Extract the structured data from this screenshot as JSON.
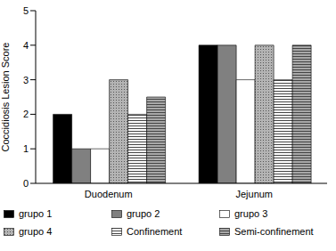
{
  "chart_data": {
    "type": "bar",
    "y_label": "Coccidiosis Lesion Score",
    "categories": [
      "Duodenum",
      "Jejunum"
    ],
    "series": [
      {
        "name": "grupo 1",
        "color": "#000000",
        "values": [
          2,
          4
        ]
      },
      {
        "name": "grupo 2",
        "color": "#808080",
        "values": [
          1,
          4
        ]
      },
      {
        "name": "grupo 3",
        "color": "#ffffff",
        "values": [
          1,
          3
        ]
      },
      {
        "name": "grupo 4",
        "color": "#b4b4b4",
        "values": [
          3,
          4
        ]
      },
      {
        "name": "Confinement",
        "color": "#ffffff",
        "values": [
          2,
          3
        ]
      },
      {
        "name": "Semi-confinement",
        "color": "#a8a8a8",
        "values": [
          2.5,
          4
        ]
      }
    ],
    "ylim": [
      0,
      5
    ],
    "yticks": [
      0,
      1,
      2,
      3,
      4,
      5
    ],
    "grid": false,
    "legend": "bottom"
  }
}
